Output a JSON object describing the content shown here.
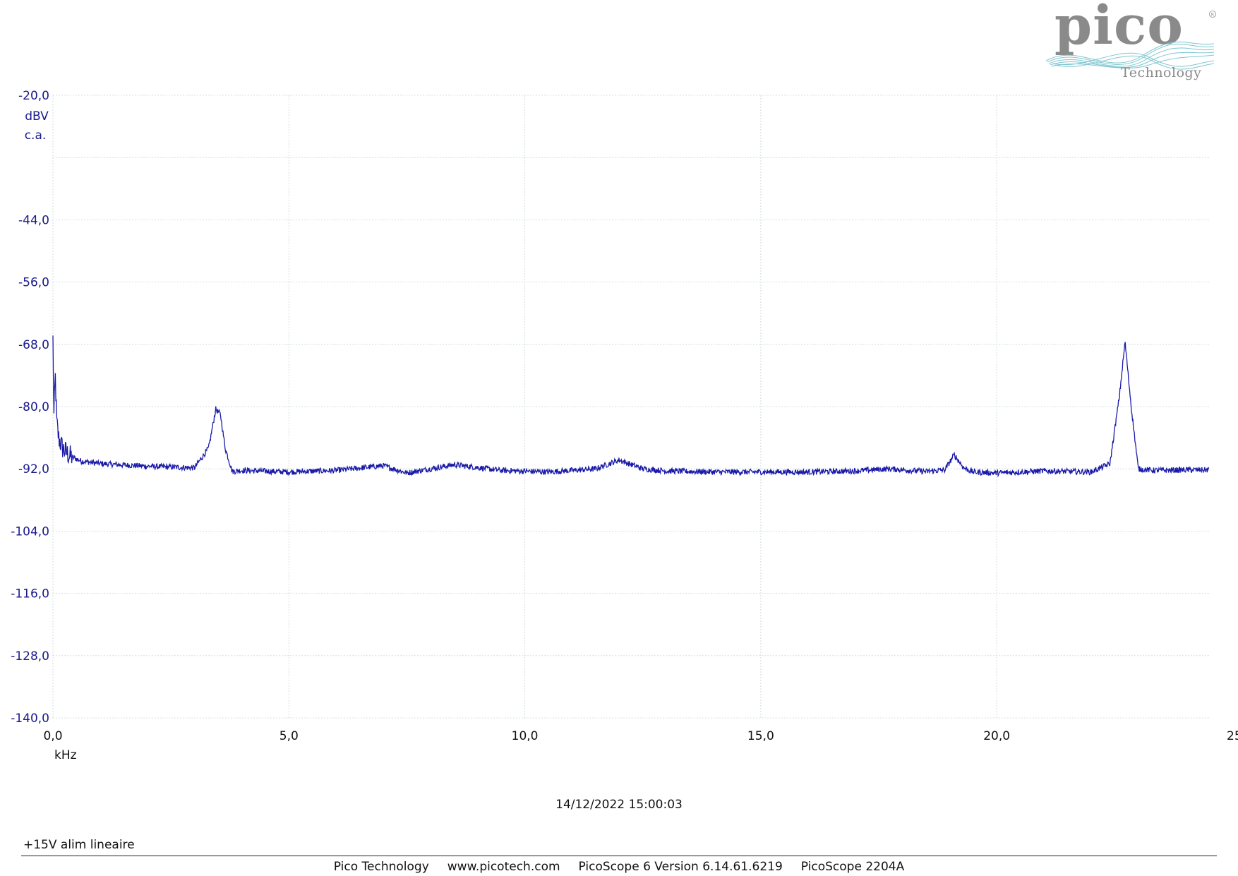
{
  "logo": {
    "brand": "pico",
    "sub": "Technology"
  },
  "colors": {
    "trace": "#1a1aa8",
    "y_labels": "#1a1a8c",
    "grid": "#c8d6dc",
    "logo_gray": "#8a8a8a",
    "logo_wave": "#7fc6cf"
  },
  "timestamp": "14/12/2022 15:00:03",
  "caption": "+15V alim lineaire",
  "footer": {
    "company": "Pico Technology",
    "url": "www.picotech.com",
    "software": "PicoScope 6 Version 6.14.61.6219",
    "device": "PicoScope 2204A"
  },
  "chart_data": {
    "type": "line",
    "y_unit": "dBV",
    "y_coupling": "c.a.",
    "x_unit": "kHz",
    "xlim": [
      0,
      24.5
    ],
    "ylim": [
      -140,
      -20
    ],
    "y_ticks": [
      "-20,0",
      "-44,0",
      "-56,0",
      "-68,0",
      "-80,0",
      "-92,0",
      "-104,0",
      "-116,0",
      "-128,0",
      "-140,0"
    ],
    "y_tick_values": [
      -20,
      -44,
      -56,
      -68,
      -80,
      -92,
      -104,
      -116,
      -128,
      -140
    ],
    "x_ticks": [
      "0,0",
      "5,0",
      "10,0",
      "15,0",
      "20,0",
      "25"
    ],
    "x_tick_values": [
      0,
      5,
      10,
      15,
      20,
      25
    ],
    "grid": true,
    "series": [
      {
        "x": [
          0,
          0.02,
          0.05,
          0.08,
          0.12,
          0.2,
          0.35,
          0.6,
          1.0,
          2.0,
          3.0,
          3.3,
          3.45,
          3.55,
          3.65,
          3.8,
          4.0,
          5.0,
          6.0,
          7.0,
          7.5,
          8.0,
          8.5,
          9.5,
          10.5,
          11.5,
          12.0,
          12.5,
          13.0,
          14.0,
          15.0,
          16.0,
          17.0,
          17.7,
          18.5,
          18.9,
          19.1,
          19.3,
          19.5,
          20.0,
          21.0,
          22.0,
          22.4,
          22.6,
          22.72,
          22.85,
          23.0,
          23.3,
          24.0,
          24.5
        ],
        "y": [
          -67,
          -82,
          -74,
          -83,
          -86,
          -88,
          -89.5,
          -90.5,
          -91,
          -91.5,
          -91.8,
          -88,
          -80.5,
          -81.5,
          -88,
          -92.5,
          -92.3,
          -92.6,
          -92.3,
          -91.4,
          -92.8,
          -92.0,
          -91.2,
          -92.3,
          -92.6,
          -92.0,
          -90.3,
          -92.0,
          -92.4,
          -92.6,
          -92.6,
          -92.6,
          -92.4,
          -92.0,
          -92.5,
          -92.2,
          -89.3,
          -91.8,
          -92.6,
          -92.8,
          -92.4,
          -92.6,
          -91.0,
          -78.0,
          -67.5,
          -80.0,
          -92.0,
          -92.3,
          -92.2,
          -92.2
        ]
      }
    ]
  }
}
